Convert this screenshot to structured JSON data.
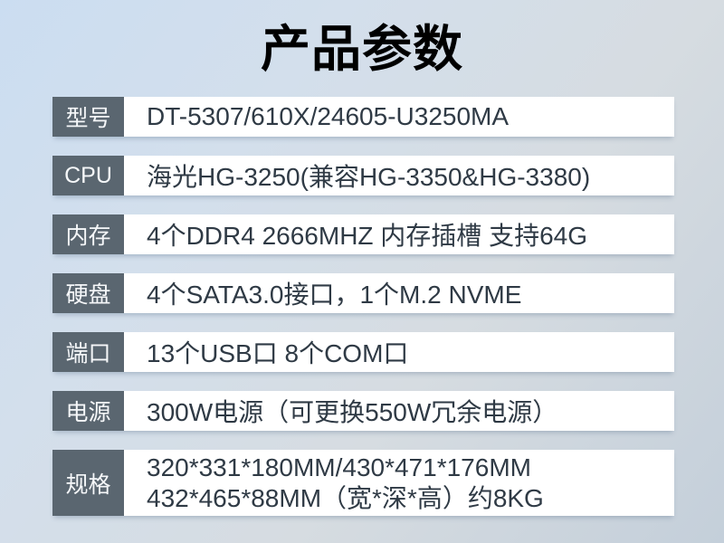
{
  "title": "产品参数",
  "colors": {
    "label_bg": "#5a6670",
    "label_text": "#f5f7f9",
    "value_bg": "#ffffff",
    "value_text": "#2f3a45",
    "title_text": "#000000",
    "bg_top_left": "#cbddf1",
    "bg_bottom_right": "#c4cfda"
  },
  "specs": [
    {
      "label": "型号",
      "value": "DT-5307/610X/24605-U3250MA"
    },
    {
      "label": "CPU",
      "value": "海光HG-3250(兼容HG-3350&HG-3380)"
    },
    {
      "label": "内存",
      "value": "4个DDR4 2666MHZ 内存插槽 支持64G"
    },
    {
      "label": "硬盘",
      "value": "4个SATA3.0接口，1个M.2 NVME"
    },
    {
      "label": "端口",
      "value": "13个USB口 8个COM口"
    },
    {
      "label": "电源",
      "value": "300W电源（可更换550W冗余电源）"
    },
    {
      "label": "规格",
      "lines": [
        "320*331*180MM/430*471*176MM",
        "432*465*88MM（宽*深*高）约8KG"
      ]
    }
  ]
}
